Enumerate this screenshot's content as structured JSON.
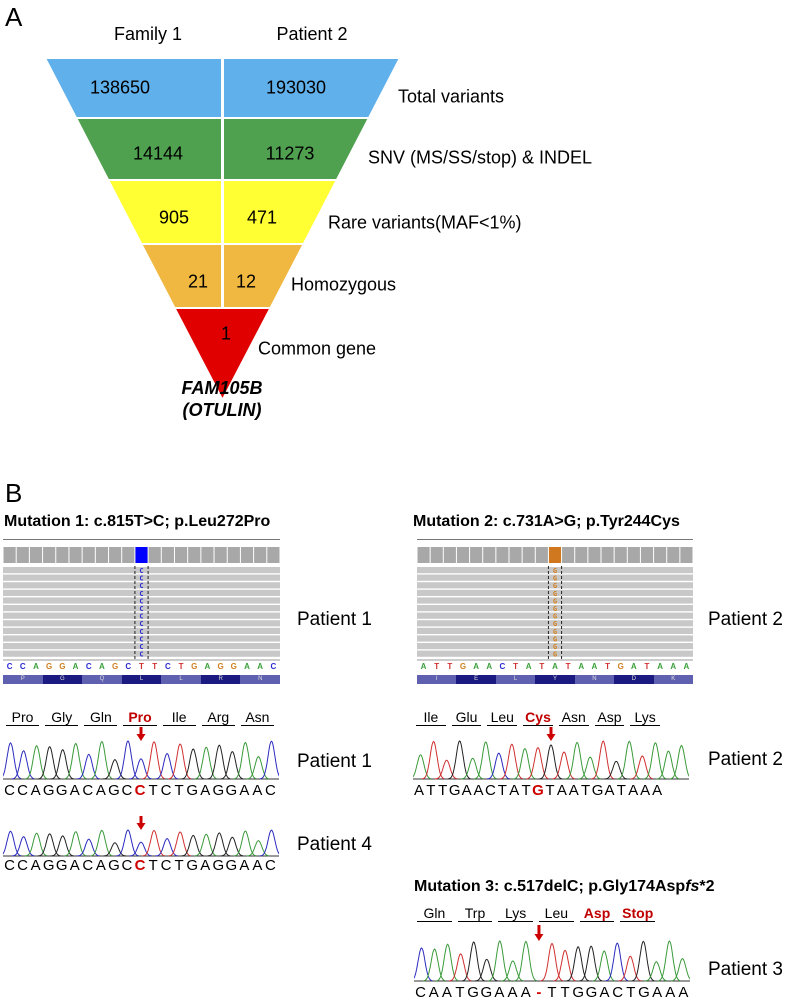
{
  "panel_a": {
    "letter": "A",
    "columns": [
      "Family 1",
      "Patient 2"
    ],
    "levels": [
      {
        "label": "Total variants",
        "left": "138650",
        "right": "193030",
        "color": "#5fb0eb"
      },
      {
        "label": "SNV (MS/SS/stop) & INDEL",
        "left": "14144",
        "right": "11273",
        "color": "#4fa04f"
      },
      {
        "label": "Rare variants(MAF<1%)",
        "left": "905",
        "right": "471",
        "color": "#ffff33"
      },
      {
        "label": "Homozygous",
        "left": "21",
        "right": "12",
        "color": "#f0b840"
      },
      {
        "label": "Common gene",
        "value": "1",
        "color": "#e00000"
      }
    ],
    "gene": "FAM105B",
    "gene_alias": "(OTULIN)"
  },
  "panel_b": {
    "letter": "B",
    "mutation1": {
      "title": "Mutation 1: c.815T>C; p.Leu272Pro",
      "igv": {
        "patient": "Patient 1",
        "reference": "CCAGGACAGCTTCTGAGGAAC",
        "amino": [
          "P",
          "G",
          "Q",
          "L",
          "L",
          "R",
          "N"
        ],
        "variant_base": "C",
        "variant_index": 10,
        "variant_color": "#0000ff"
      },
      "amino_acids": [
        "Pro",
        "Gly",
        "Gln",
        "Pro",
        "Ile",
        "Arg",
        "Asn"
      ],
      "mutant_aa_index": 3,
      "traces": [
        {
          "patient": "Patient 1",
          "sequence": "CCAGGACAGCCTCTGAGGAAC",
          "mut_index": 10
        },
        {
          "patient": "Patient 4",
          "sequence": "CCAGGACAGCCTCTGAGGAAC",
          "mut_index": 10
        }
      ]
    },
    "mutation2": {
      "title": "Mutation 2: c.731A>G; p.Tyr244Cys",
      "igv": {
        "patient": "Patient 2",
        "reference": "ATTGAACTATATAATGATAAA",
        "amino": [
          "I",
          "E",
          "L",
          "Y",
          "N",
          "D",
          "K"
        ],
        "variant_base": "G",
        "variant_index": 10,
        "variant_color": "#d07820"
      },
      "amino_acids": [
        "Ile",
        "Glu",
        "Leu",
        "Cys",
        "Asn",
        "Asp",
        "Lys"
      ],
      "mutant_aa_index": 3,
      "trace": {
        "patient": "Patient 2",
        "sequence": "ATTGAACTATGTAATGATAAA",
        "mut_index": 10
      }
    },
    "mutation3": {
      "title_prefix": "Mutation 3: c.517delC; p.Gly174Asp",
      "title_italic": "fs",
      "title_suffix": "*2",
      "amino_acids": [
        "Gln",
        "Trp",
        "Lys",
        "Leu",
        "Asp",
        "Stop"
      ],
      "red_from_index": 4,
      "trace": {
        "patient": "Patient 3",
        "sequence": "CAATGGAAA-TTGGACTGAAA",
        "mut_index": 9
      }
    },
    "base_colors": {
      "A": "#3a9a3a",
      "C": "#2b2bbf",
      "G": "#222222",
      "T": "#d03030"
    },
    "igv_base_colors": {
      "A": "#3aa03a",
      "C": "#2b2bd0",
      "G": "#d08020",
      "T": "#d03030"
    },
    "arrow_color": "#cc0000"
  }
}
